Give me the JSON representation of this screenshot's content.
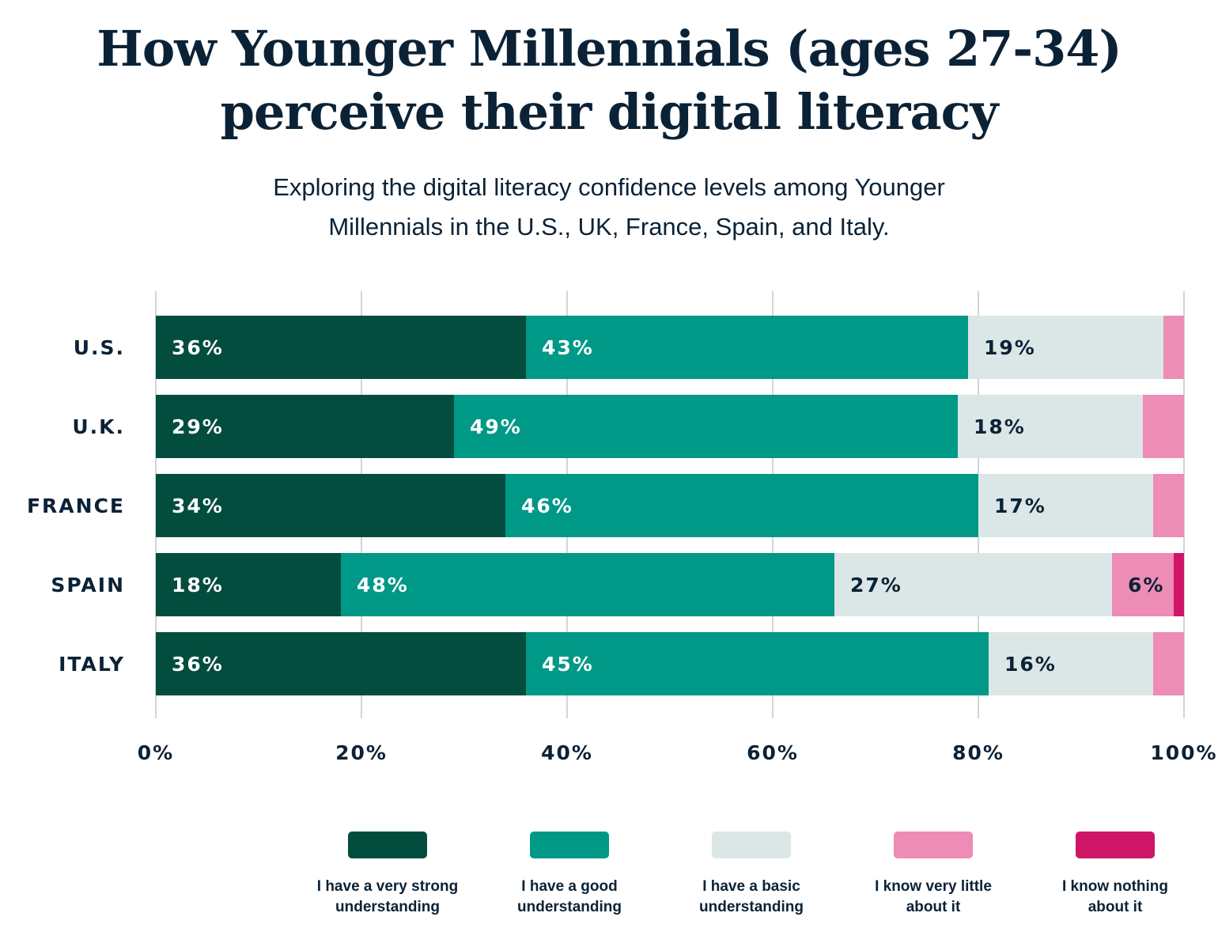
{
  "chart_data": {
    "type": "bar",
    "orientation": "horizontal",
    "stacked": true,
    "title": "How Younger Millennials (ages 27-34) perceive their digital literacy",
    "title_lines": [
      "How Younger Millennials (ages 27-34)",
      "perceive their digital literacy"
    ],
    "subtitle": "Exploring the digital literacy confidence levels among Younger Millennials in the U.S., UK, France, Spain, and Italy.",
    "subtitle_lines": [
      "Exploring the digital literacy confidence levels among Younger",
      "Millennials in the U.S., UK, France, Spain, and Italy."
    ],
    "categories": [
      "U.S.",
      "U.K.",
      "FRANCE",
      "SPAIN",
      "ITALY"
    ],
    "series": [
      {
        "name": "I have a very strong understanding",
        "color": "#024d3e",
        "label_color": "#ffffff",
        "values": [
          36,
          29,
          34,
          18,
          36
        ]
      },
      {
        "name": "I have a good understanding",
        "color": "#009887",
        "label_color": "#ffffff",
        "values": [
          43,
          49,
          46,
          48,
          45
        ]
      },
      {
        "name": "I have a basic understanding",
        "color": "#dbe7e6",
        "label_color": "#0b2236",
        "values": [
          19,
          18,
          17,
          27,
          16
        ]
      },
      {
        "name": "I know very little about it",
        "color": "#ed8cb5",
        "label_color": "#0b2236",
        "values": [
          2,
          4,
          3,
          6,
          3
        ]
      },
      {
        "name": "I know nothing about it",
        "color": "#cf1568",
        "label_color": "#ffffff",
        "values": [
          0,
          0,
          0,
          1,
          0
        ]
      }
    ],
    "legend_lines": [
      [
        "I have a very strong",
        "understanding"
      ],
      [
        "I have a good",
        "understanding"
      ],
      [
        "I have a basic",
        "understanding"
      ],
      [
        "I know very little",
        "about it"
      ],
      [
        "I know nothing",
        "about it"
      ]
    ],
    "xlim": [
      0,
      100
    ],
    "xticks": [
      "0%",
      "20%",
      "40%",
      "60%",
      "80%",
      "100%"
    ],
    "grid": true,
    "legend_placement": "bottom",
    "value_format": "percent"
  }
}
